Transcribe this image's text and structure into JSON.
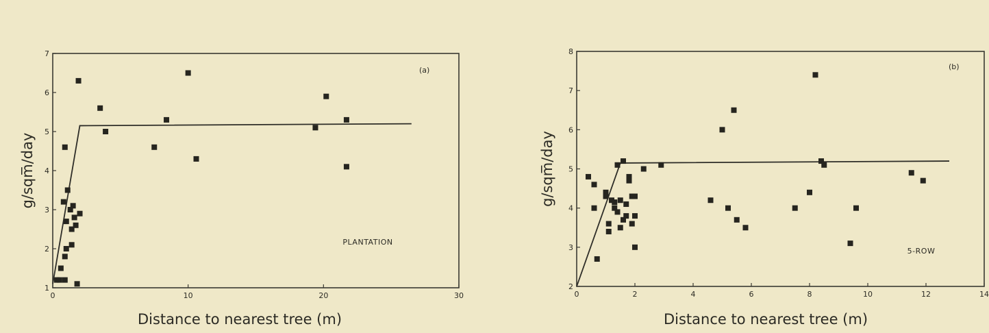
{
  "chart_data": [
    {
      "type": "scatter",
      "panel": "(a)",
      "annotation": "PLANTATION",
      "xlabel": "Distance to nearest tree (m)",
      "ylabel": "g/sqm̅/day",
      "xlim": [
        0,
        30
      ],
      "ylim": [
        1,
        7
      ],
      "xticks": [
        "0",
        "10",
        "20",
        "30"
      ],
      "yticks": [
        "1",
        "2",
        "3",
        "4",
        "5",
        "6",
        "7"
      ],
      "grid": false,
      "points": [
        {
          "x": 0.3,
          "y": 1.2
        },
        {
          "x": 0.5,
          "y": 1.2
        },
        {
          "x": 0.6,
          "y": 1.5
        },
        {
          "x": 0.9,
          "y": 1.2
        },
        {
          "x": 0.9,
          "y": 1.8
        },
        {
          "x": 1.0,
          "y": 2.0
        },
        {
          "x": 0.8,
          "y": 3.2
        },
        {
          "x": 1.0,
          "y": 2.7
        },
        {
          "x": 1.1,
          "y": 3.5
        },
        {
          "x": 0.9,
          "y": 4.6
        },
        {
          "x": 1.3,
          "y": 3.0
        },
        {
          "x": 1.4,
          "y": 2.5
        },
        {
          "x": 1.4,
          "y": 2.1
        },
        {
          "x": 1.5,
          "y": 3.1
        },
        {
          "x": 1.6,
          "y": 2.8
        },
        {
          "x": 1.7,
          "y": 2.6
        },
        {
          "x": 1.8,
          "y": 1.1
        },
        {
          "x": 1.9,
          "y": 6.3
        },
        {
          "x": 2.0,
          "y": 2.9
        },
        {
          "x": 3.5,
          "y": 5.6
        },
        {
          "x": 3.9,
          "y": 5.0
        },
        {
          "x": 7.5,
          "y": 4.6
        },
        {
          "x": 8.4,
          "y": 5.3
        },
        {
          "x": 10.0,
          "y": 6.5
        },
        {
          "x": 10.6,
          "y": 4.3
        },
        {
          "x": 19.4,
          "y": 5.1
        },
        {
          "x": 20.2,
          "y": 5.9
        },
        {
          "x": 21.7,
          "y": 5.3
        },
        {
          "x": 21.7,
          "y": 4.1
        }
      ],
      "fit_line": [
        {
          "x": 0,
          "y": 1.1
        },
        {
          "x": 2.0,
          "y": 5.15
        },
        {
          "x": 26.5,
          "y": 5.2
        }
      ]
    },
    {
      "type": "scatter",
      "panel": "(b)",
      "annotation": "5-ROW",
      "xlabel": "Distance to nearest tree (m)",
      "ylabel": "g/sqm̅/day",
      "xlim": [
        0,
        14
      ],
      "ylim": [
        2,
        8
      ],
      "xticks": [
        "0",
        "2",
        "4",
        "6",
        "8",
        "10",
        "12",
        "14"
      ],
      "yticks": [
        "2",
        "3",
        "4",
        "5",
        "6",
        "7",
        "8"
      ],
      "grid": false,
      "points": [
        {
          "x": 0.4,
          "y": 4.8
        },
        {
          "x": 0.6,
          "y": 4.6
        },
        {
          "x": 0.6,
          "y": 4.0
        },
        {
          "x": 0.7,
          "y": 2.7
        },
        {
          "x": 1.0,
          "y": 4.4
        },
        {
          "x": 1.0,
          "y": 4.3
        },
        {
          "x": 1.1,
          "y": 3.6
        },
        {
          "x": 1.1,
          "y": 3.4
        },
        {
          "x": 1.2,
          "y": 4.2
        },
        {
          "x": 1.3,
          "y": 4.0
        },
        {
          "x": 1.3,
          "y": 4.15
        },
        {
          "x": 1.4,
          "y": 3.9
        },
        {
          "x": 1.4,
          "y": 5.1
        },
        {
          "x": 1.5,
          "y": 4.2
        },
        {
          "x": 1.5,
          "y": 3.5
        },
        {
          "x": 1.6,
          "y": 5.2
        },
        {
          "x": 1.6,
          "y": 3.7
        },
        {
          "x": 1.7,
          "y": 4.1
        },
        {
          "x": 1.7,
          "y": 3.8
        },
        {
          "x": 1.8,
          "y": 4.8
        },
        {
          "x": 1.8,
          "y": 4.7
        },
        {
          "x": 1.9,
          "y": 3.6
        },
        {
          "x": 1.9,
          "y": 4.3
        },
        {
          "x": 2.0,
          "y": 4.3
        },
        {
          "x": 2.0,
          "y": 3.8
        },
        {
          "x": 2.0,
          "y": 3.0
        },
        {
          "x": 2.3,
          "y": 5.0
        },
        {
          "x": 2.9,
          "y": 5.1
        },
        {
          "x": 4.6,
          "y": 4.2
        },
        {
          "x": 5.0,
          "y": 6.0
        },
        {
          "x": 5.2,
          "y": 4.0
        },
        {
          "x": 5.4,
          "y": 6.5
        },
        {
          "x": 5.5,
          "y": 3.7
        },
        {
          "x": 5.8,
          "y": 3.5
        },
        {
          "x": 7.5,
          "y": 4.0
        },
        {
          "x": 8.0,
          "y": 4.4
        },
        {
          "x": 8.2,
          "y": 7.4
        },
        {
          "x": 8.4,
          "y": 5.2
        },
        {
          "x": 8.5,
          "y": 5.1
        },
        {
          "x": 9.4,
          "y": 3.1
        },
        {
          "x": 9.6,
          "y": 4.0
        },
        {
          "x": 11.5,
          "y": 4.9
        },
        {
          "x": 11.9,
          "y": 4.7
        }
      ],
      "fit_line": [
        {
          "x": 0,
          "y": 2.0
        },
        {
          "x": 1.5,
          "y": 5.15
        },
        {
          "x": 12.8,
          "y": 5.2
        }
      ]
    }
  ]
}
